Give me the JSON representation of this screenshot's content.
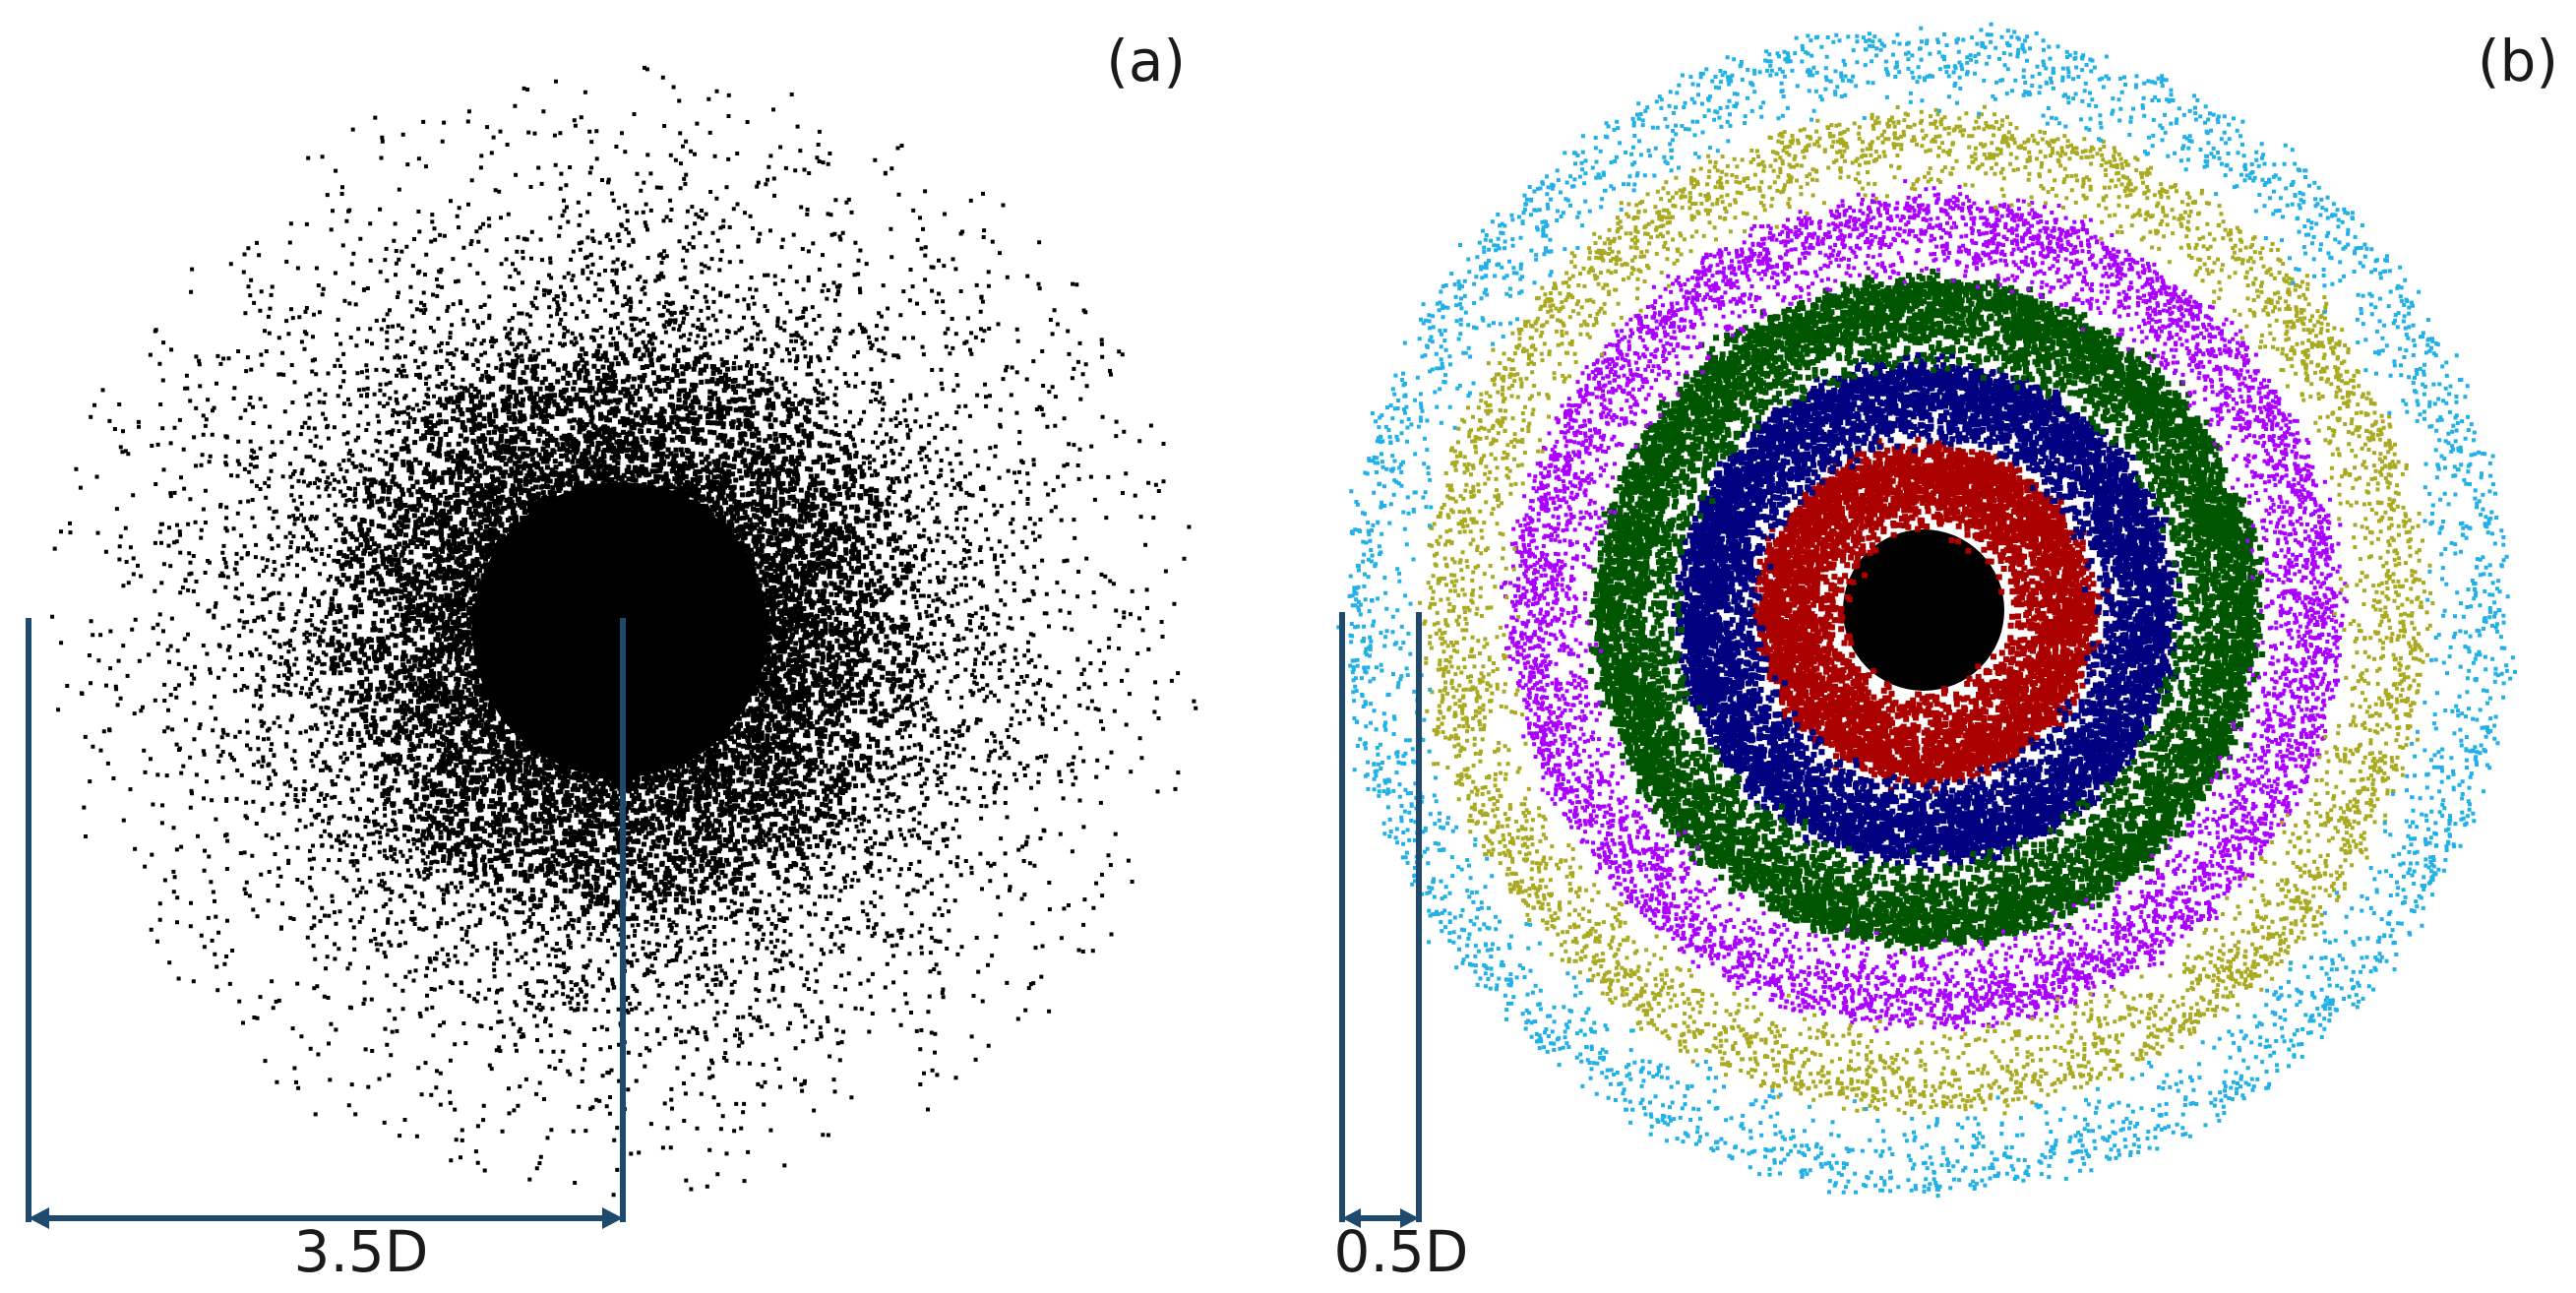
{
  "panels": [
    {
      "label": "(a)",
      "scale_bar": {
        "text": "3.5D"
      }
    },
    {
      "label": "(b)",
      "scale_bar": {
        "text": "0.5D"
      },
      "ring_colors": [
        "#000000",
        "#aa0000",
        "#000080",
        "#005500",
        "#aa00ff",
        "#aaaa22",
        "#22b0e6"
      ]
    }
  ],
  "colors": {
    "particles_a": "#000000",
    "scale_bar": "#1f4a6e"
  }
}
